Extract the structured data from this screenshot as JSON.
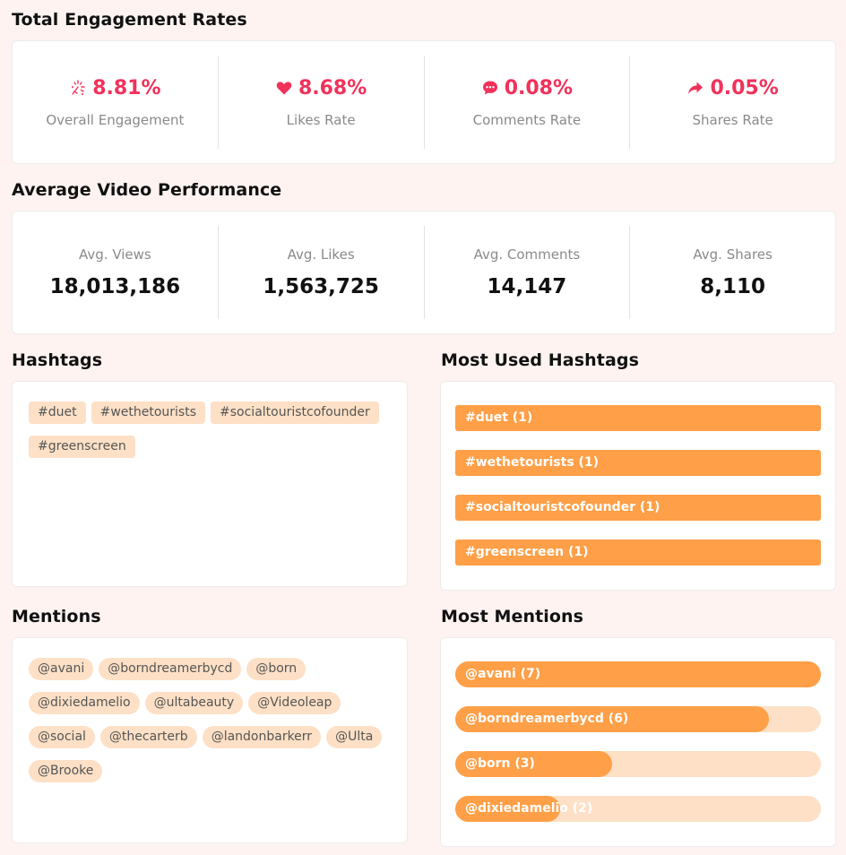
{
  "engagement": {
    "title": "Total Engagement Rates",
    "items": [
      {
        "icon": "sparkle-icon",
        "value": "8.81%",
        "label": "Overall Engagement"
      },
      {
        "icon": "heart-icon",
        "value": "8.68%",
        "label": "Likes Rate"
      },
      {
        "icon": "comment-icon",
        "value": "0.08%",
        "label": "Comments Rate"
      },
      {
        "icon": "share-icon",
        "value": "0.05%",
        "label": "Shares Rate"
      }
    ]
  },
  "performance": {
    "title": "Average Video Performance",
    "items": [
      {
        "label": "Avg. Views",
        "value": "18,013,186"
      },
      {
        "label": "Avg. Likes",
        "value": "1,563,725"
      },
      {
        "label": "Avg. Comments",
        "value": "14,147"
      },
      {
        "label": "Avg. Shares",
        "value": "8,110"
      }
    ]
  },
  "hashtags": {
    "title": "Hashtags",
    "items": [
      "#duet",
      "#wethetourists",
      "#socialtouristcofounder",
      "#greenscreen"
    ]
  },
  "most_used_hashtags": {
    "title": "Most Used Hashtags",
    "items": [
      {
        "label": "#duet (1)",
        "fraction": 1.0
      },
      {
        "label": "#wethetourists (1)",
        "fraction": 1.0
      },
      {
        "label": "#socialtouristcofounder (1)",
        "fraction": 1.0
      },
      {
        "label": "#greenscreen (1)",
        "fraction": 1.0
      }
    ]
  },
  "mentions": {
    "title": "Mentions",
    "items": [
      "@avani",
      "@borndreamerbycd",
      "@born",
      "@dixiedamelio",
      "@ultabeauty",
      "@Videoleap",
      "@social",
      "@thecarterb",
      "@landonbarkerr",
      "@Ulta",
      "@Brooke"
    ]
  },
  "most_mentions": {
    "title": "Most Mentions",
    "items": [
      {
        "label": "@avani (7)",
        "fraction": 1.0
      },
      {
        "label": "@borndreamerbycd (6)",
        "fraction": 0.857
      },
      {
        "label": "@born (3)",
        "fraction": 0.429
      },
      {
        "label": "@dixiedamelio (2)",
        "fraction": 0.286
      }
    ]
  },
  "colors": {
    "accent_red": "#f0325a",
    "bar_fill": "#ff9f47",
    "bar_track": "#fde0c6",
    "page_bg": "#fff3f1"
  }
}
